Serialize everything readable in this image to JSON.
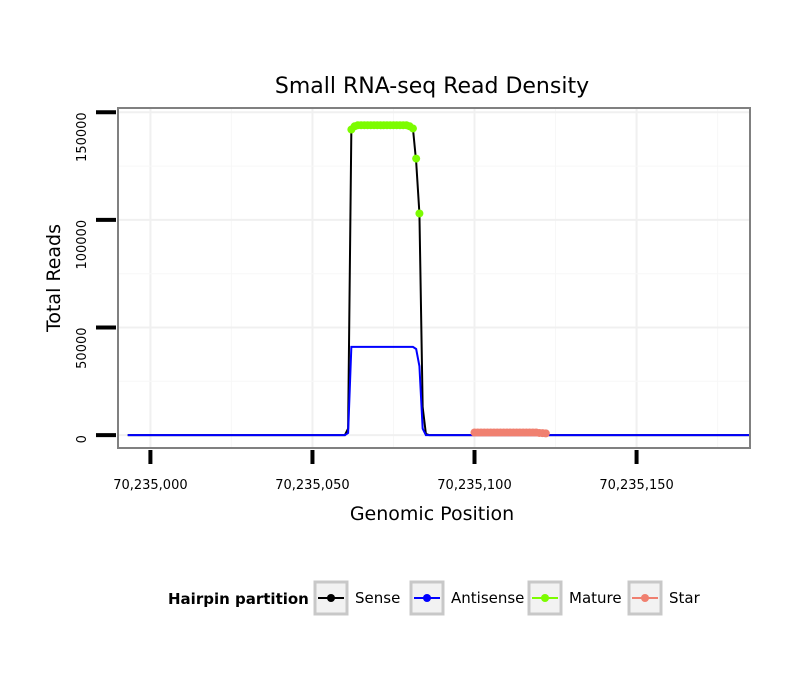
{
  "chart_data": {
    "type": "line",
    "title": "Small RNA-seq Read Density",
    "xlabel": "Genomic Position",
    "ylabel": "Total Reads",
    "xlim": [
      70234990,
      70235185
    ],
    "ylim": [
      -6000,
      152000
    ],
    "x_ticks": [
      70235000,
      70235050,
      70235100,
      70235150
    ],
    "x_tick_labels": [
      "70,235,000",
      "70,235,050",
      "70,235,100",
      "70,235,150"
    ],
    "y_ticks": [
      0,
      50000,
      100000,
      150000
    ],
    "y_tick_labels": [
      "0",
      "50000",
      "100000",
      "150000"
    ],
    "grid": true,
    "legend": {
      "title": "Hairpin partition",
      "position": "bottom",
      "entries": [
        {
          "name": "Sense",
          "color": "#000000"
        },
        {
          "name": "Antisense",
          "color": "#0000ff"
        },
        {
          "name": "Mature",
          "color": "#7cfc00"
        },
        {
          "name": "Star",
          "color": "#f08070"
        }
      ]
    },
    "series": [
      {
        "name": "Sense",
        "color": "#000000",
        "points": [
          [
            70234993,
            0
          ],
          [
            70235052,
            0
          ],
          [
            70235060,
            0
          ],
          [
            70235061,
            3000
          ],
          [
            70235062,
            142000
          ],
          [
            70235063,
            144000
          ],
          [
            70235080,
            144000
          ],
          [
            70235081,
            142500
          ],
          [
            70235082,
            127000
          ],
          [
            70235083,
            103000
          ],
          [
            70235084,
            13000
          ],
          [
            70235085,
            500
          ],
          [
            70235086,
            0
          ],
          [
            70235185,
            0
          ]
        ]
      },
      {
        "name": "Antisense",
        "color": "#0000ff",
        "points": [
          [
            70234993,
            0
          ],
          [
            70235060,
            0
          ],
          [
            70235061,
            1000
          ],
          [
            70235062,
            41000
          ],
          [
            70235063,
            41000
          ],
          [
            70235081,
            41000
          ],
          [
            70235082,
            40000
          ],
          [
            70235083,
            32000
          ],
          [
            70235084,
            3000
          ],
          [
            70235085,
            0
          ],
          [
            70235185,
            0
          ]
        ]
      },
      {
        "name": "Mature",
        "color": "#7cfc00",
        "points": [
          [
            70235062,
            142000
          ],
          [
            70235063,
            143500
          ],
          [
            70235064,
            144000
          ],
          [
            70235065,
            144000
          ],
          [
            70235066,
            144000
          ],
          [
            70235067,
            144000
          ],
          [
            70235068,
            144000
          ],
          [
            70235069,
            144000
          ],
          [
            70235070,
            144000
          ],
          [
            70235071,
            144000
          ],
          [
            70235072,
            144000
          ],
          [
            70235073,
            144000
          ],
          [
            70235074,
            144000
          ],
          [
            70235075,
            144000
          ],
          [
            70235076,
            144000
          ],
          [
            70235077,
            144000
          ],
          [
            70235078,
            144000
          ],
          [
            70235079,
            144000
          ],
          [
            70235080,
            143500
          ],
          [
            70235081,
            142500
          ],
          [
            70235082,
            128500
          ],
          [
            70235083,
            103000
          ]
        ]
      },
      {
        "name": "Star",
        "color": "#f08070",
        "points": [
          [
            70235100,
            1200
          ],
          [
            70235101,
            1200
          ],
          [
            70235102,
            1200
          ],
          [
            70235103,
            1200
          ],
          [
            70235104,
            1200
          ],
          [
            70235105,
            1200
          ],
          [
            70235106,
            1200
          ],
          [
            70235107,
            1200
          ],
          [
            70235108,
            1200
          ],
          [
            70235109,
            1200
          ],
          [
            70235110,
            1200
          ],
          [
            70235111,
            1200
          ],
          [
            70235112,
            1200
          ],
          [
            70235113,
            1200
          ],
          [
            70235114,
            1200
          ],
          [
            70235115,
            1200
          ],
          [
            70235116,
            1200
          ],
          [
            70235117,
            1200
          ],
          [
            70235118,
            1200
          ],
          [
            70235119,
            1200
          ],
          [
            70235120,
            1000
          ],
          [
            70235121,
            900
          ],
          [
            70235122,
            800
          ]
        ]
      }
    ]
  }
}
